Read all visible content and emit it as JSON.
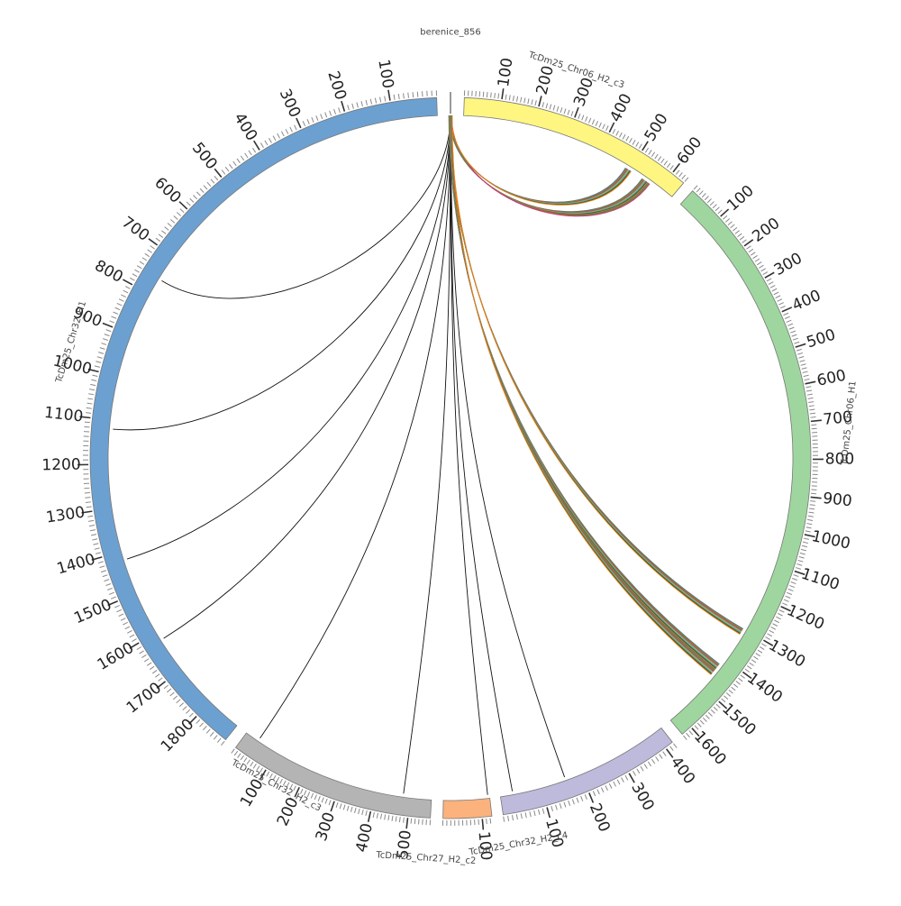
{
  "chart_data": {
    "type": "chord",
    "segments": [
      {
        "name": "berenice_856",
        "length": 1,
        "color": "#ffffff",
        "ticks": []
      },
      {
        "name": "TcDm25_Chr06_H2_c3",
        "length": 640,
        "color": "#fff681",
        "ticks": [
          "100",
          "200",
          "300",
          "400",
          "500",
          "600"
        ]
      },
      {
        "name": "TcDm25_Chr06_H1",
        "length": 1630,
        "color": "#9fd69f",
        "ticks": [
          "100",
          "200",
          "300",
          "400",
          "500",
          "600",
          "700",
          "800",
          "900",
          "1000",
          "1100",
          "1200",
          "1300",
          "1400",
          "1500",
          "1600"
        ]
      },
      {
        "name": "TcDm25_Chr32_H2_c4",
        "length": 420,
        "color": "#bdbadb",
        "ticks": [
          "100",
          "200",
          "300",
          "400"
        ]
      },
      {
        "name": "TcDm25_Chr27_H2_c2",
        "length": 125,
        "color": "#fbb27d",
        "ticks": [
          "100"
        ]
      },
      {
        "name": "TcDm25_Chr32_H2_c3",
        "length": 560,
        "color": "#b4b4b4",
        "ticks": [
          "100",
          "200",
          "300",
          "400",
          "500"
        ]
      },
      {
        "name": "TcDm25_Chr32_H1",
        "length": 1880,
        "color": "#6ca0d0",
        "ticks": [
          "100",
          "200",
          "300",
          "400",
          "500",
          "600",
          "700",
          "800",
          "900",
          "1000",
          "1100",
          "1200",
          "1300",
          "1400",
          "1500",
          "1600",
          "1700",
          "1800"
        ]
      }
    ],
    "links": [
      {
        "target": "TcDm25_Chr32_H1",
        "position": 1620
      },
      {
        "target": "TcDm25_Chr32_H1",
        "position": 1420
      },
      {
        "target": "TcDm25_Chr32_H1",
        "position": 1120
      },
      {
        "target": "TcDm25_Chr32_H1",
        "position": 760
      },
      {
        "target": "TcDm25_Chr32_H2_c3",
        "position": 480
      },
      {
        "target": "TcDm25_Chr32_H2_c3",
        "position": 40
      },
      {
        "target": "TcDm25_Chr27_H2_c2",
        "position": 120
      },
      {
        "target": "TcDm25_Chr32_H2_c4",
        "position": 160
      },
      {
        "target": "TcDm25_Chr32_H2_c4",
        "position": 30
      },
      {
        "target": "TcDm25_Chr06_H2_c3",
        "position": 555,
        "bundle": 14
      },
      {
        "target": "TcDm25_Chr06_H2_c3",
        "position": 495,
        "bundle": 10
      },
      {
        "target": "TcDm25_Chr06_H1",
        "position": 1310,
        "bundle": 10
      },
      {
        "target": "TcDm25_Chr06_H1",
        "position": 1440,
        "bundle": 20
      }
    ],
    "bundle_colors": [
      "#1f77b4",
      "#d95f02",
      "#2ca02c",
      "#e7298a",
      "#7f7f7f",
      "#bcbd22",
      "#17becf",
      "#8c564b",
      "#1b5e20",
      "#ff7f0e"
    ]
  }
}
